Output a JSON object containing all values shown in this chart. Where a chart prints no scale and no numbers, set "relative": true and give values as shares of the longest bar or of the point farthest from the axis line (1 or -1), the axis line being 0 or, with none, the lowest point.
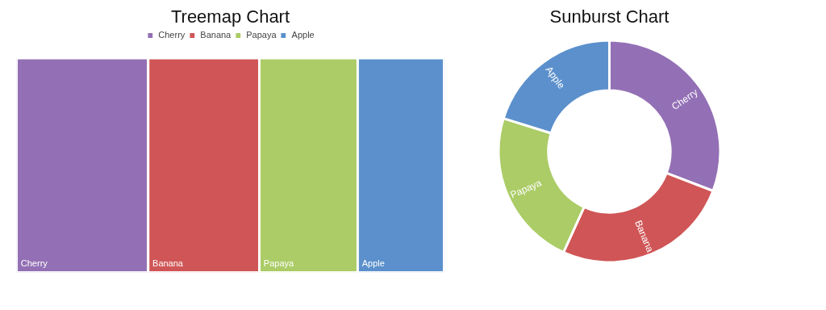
{
  "chart_data": [
    {
      "type": "bar",
      "title": "Treemap Chart",
      "relative": true,
      "stacked": true,
      "orientation": "horizontal",
      "categories": [
        null
      ],
      "legend": "top",
      "series": [
        {
          "name": "Cherry",
          "color": "#9370b5",
          "values": [
            0.308
          ]
        },
        {
          "name": "Banana",
          "color": "#d05556",
          "values": [
            0.26
          ]
        },
        {
          "name": "Papaya",
          "color": "#abcc66",
          "values": [
            0.23
          ]
        },
        {
          "name": "Apple",
          "color": "#5b90cc",
          "values": [
            0.202
          ]
        }
      ]
    },
    {
      "type": "donut",
      "title": "Sunburst Chart",
      "categories": [
        "Cherry",
        "Banana",
        "Papaya",
        "Apple"
      ],
      "values": [
        30.8,
        26,
        23,
        20.2
      ],
      "colors": [
        "#9370b5",
        "#d05556",
        "#abcc66",
        "#5b90cc"
      ]
    }
  ]
}
